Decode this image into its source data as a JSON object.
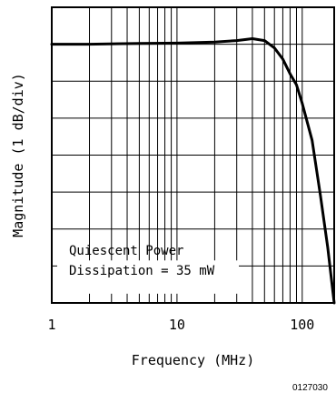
{
  "chart_data": {
    "type": "line",
    "xlabel": "Frequency (MHz)",
    "ylabel": "Magnitude (1 dB/div)",
    "x_scale": "log",
    "xlim": [
      1,
      180
    ],
    "ylim": [
      -7,
      1
    ],
    "x_ticks": [
      1,
      10,
      100
    ],
    "x_tick_labels": [
      "1",
      "10",
      "100"
    ],
    "grid": true,
    "annotation": [
      "Quiescent Power",
      "Dissipation = 35 mW"
    ],
    "series": [
      {
        "x": [
          1,
          2,
          5,
          10,
          20,
          30,
          40,
          50,
          60,
          70,
          80,
          90,
          100,
          120,
          140,
          160,
          180
        ],
        "y": [
          0,
          0,
          0.02,
          0.03,
          0.06,
          0.1,
          0.15,
          0.1,
          -0.1,
          -0.4,
          -0.8,
          -1.1,
          -1.6,
          -2.6,
          -4.1,
          -5.5,
          -7
        ]
      }
    ]
  },
  "figure_code": "0127030"
}
